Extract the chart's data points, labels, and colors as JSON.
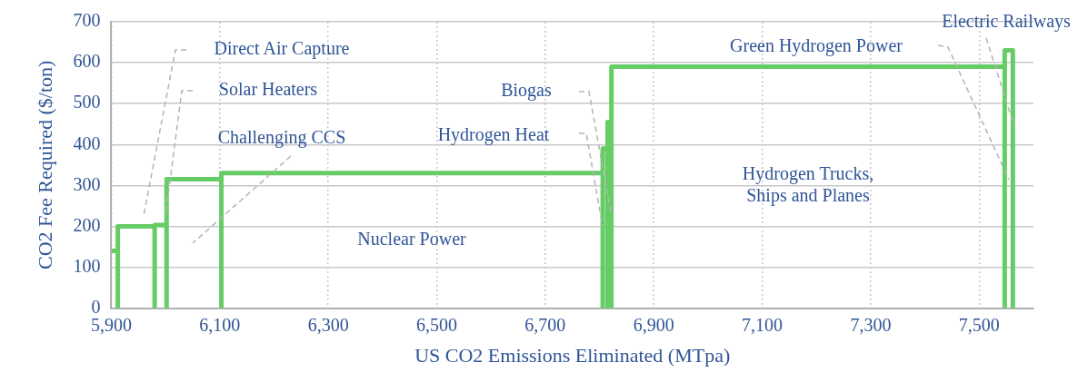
{
  "chart_data": {
    "type": "line",
    "xlabel": "US CO2 Emissions Eliminated (MTpa)",
    "ylabel": "CO2 Fee Required ($/ton)",
    "series": [
      {
        "type": "line",
        "color": "#66cc66",
        "x": [
          5900,
          5912,
          5912,
          5912,
          5980,
          5980,
          5980,
          6002,
          6002,
          6002,
          6103,
          6103,
          6103,
          6806,
          6806,
          6806,
          6815,
          6815,
          6815,
          6822,
          6822,
          6822,
          7547,
          7547,
          7547,
          7562,
          7562
        ],
        "values": [
          140,
          140,
          0,
          200,
          200,
          0,
          203,
          203,
          0,
          315,
          315,
          0,
          330,
          330,
          0,
          390,
          390,
          0,
          455,
          455,
          0,
          590,
          590,
          0,
          630,
          630,
          0
        ]
      }
    ],
    "xlim": [
      5900,
      7600
    ],
    "xticks": [
      {
        "value": 5900,
        "label": "5,900"
      },
      {
        "value": 6100,
        "label": "6,100"
      },
      {
        "value": 6300,
        "label": "6,300"
      },
      {
        "value": 6500,
        "label": "6,500"
      },
      {
        "value": 6700,
        "label": "6,700"
      },
      {
        "value": 6900,
        "label": "6,900"
      },
      {
        "value": 7100,
        "label": "7,100"
      },
      {
        "value": 7300,
        "label": "7,300"
      },
      {
        "value": 7500,
        "label": "7,500"
      }
    ],
    "ylim": [
      0,
      700
    ],
    "yticks": [
      0,
      100,
      200,
      300,
      400,
      500,
      600,
      700
    ],
    "grid": true,
    "legend": false,
    "marker": "none",
    "line_style": "solid",
    "annotations": [
      "Direct Air Capture",
      "Solar Heaters",
      "Challenging CCS",
      "Nuclear Power",
      "Hydrogen Heat",
      "Biogas",
      "Green Hydrogen Power",
      "Hydrogen Trucks,\nShips and Planes",
      {
        "text": "Electric Railways",
        "x": 7562,
        "y": 455
      }
    ]
  }
}
